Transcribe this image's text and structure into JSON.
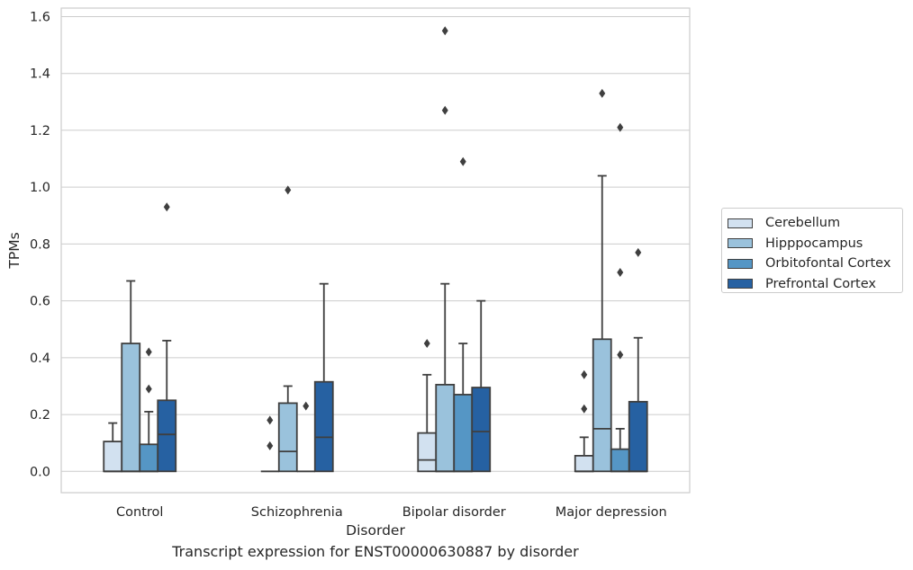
{
  "caption": "Transcript expression for ENST00000630887 by disorder",
  "chart_data": {
    "type": "boxplot",
    "xlabel": "Disorder",
    "ylabel": "TPMs",
    "ylim": [
      -0.075,
      1.63
    ],
    "yticks": [
      0.0,
      0.2,
      0.4,
      0.6,
      0.8,
      1.0,
      1.2,
      1.4,
      1.6
    ],
    "ytick_labels": [
      "0.0",
      "0.2",
      "0.4",
      "0.6",
      "0.8",
      "1.0",
      "1.2",
      "1.4",
      "1.6"
    ],
    "grid": true,
    "legend_position": "right",
    "categories": [
      "Control",
      "Schizophrenia",
      "Bipolar disorder",
      "Major depression"
    ],
    "series": [
      {
        "name": "Cerebellum",
        "color": "#d2e1f0",
        "boxes": [
          {
            "q1": 0.0,
            "median": 0.0,
            "q3": 0.105,
            "whisker_low": 0.0,
            "whisker_high": 0.17,
            "outliers": []
          },
          {
            "q1": 0.0,
            "median": 0.0,
            "q3": 0.0,
            "whisker_low": 0.0,
            "whisker_high": 0.0,
            "outliers": [
              0.09,
              0.18
            ]
          },
          {
            "q1": 0.0,
            "median": 0.04,
            "q3": 0.135,
            "whisker_low": 0.0,
            "whisker_high": 0.34,
            "outliers": [
              0.45
            ]
          },
          {
            "q1": 0.0,
            "median": 0.0,
            "q3": 0.055,
            "whisker_low": 0.0,
            "whisker_high": 0.12,
            "outliers": [
              0.22,
              0.34
            ]
          }
        ]
      },
      {
        "name": "Hipppocampus",
        "color": "#9ac2dc",
        "boxes": [
          {
            "q1": 0.0,
            "median": 0.0,
            "q3": 0.45,
            "whisker_low": 0.0,
            "whisker_high": 0.67,
            "outliers": []
          },
          {
            "q1": 0.0,
            "median": 0.07,
            "q3": 0.24,
            "whisker_low": 0.0,
            "whisker_high": 0.3,
            "outliers": [
              0.99
            ]
          },
          {
            "q1": 0.0,
            "median": 0.0,
            "q3": 0.305,
            "whisker_low": 0.0,
            "whisker_high": 0.66,
            "outliers": [
              1.27,
              1.55
            ]
          },
          {
            "q1": 0.0,
            "median": 0.15,
            "q3": 0.465,
            "whisker_low": 0.0,
            "whisker_high": 1.04,
            "outliers": [
              1.33
            ]
          }
        ]
      },
      {
        "name": "Orbitofontal Cortex",
        "color": "#5596c5",
        "boxes": [
          {
            "q1": 0.0,
            "median": 0.0,
            "q3": 0.095,
            "whisker_low": 0.0,
            "whisker_high": 0.21,
            "outliers": [
              0.29,
              0.42
            ]
          },
          {
            "q1": 0.0,
            "median": 0.0,
            "q3": 0.0,
            "whisker_low": 0.0,
            "whisker_high": 0.0,
            "outliers": [
              0.23
            ]
          },
          {
            "q1": 0.0,
            "median": 0.0,
            "q3": 0.27,
            "whisker_low": 0.0,
            "whisker_high": 0.45,
            "outliers": [
              1.09
            ]
          },
          {
            "q1": 0.0,
            "median": 0.0,
            "q3": 0.078,
            "whisker_low": 0.0,
            "whisker_high": 0.15,
            "outliers": [
              0.41,
              0.7,
              1.21
            ]
          }
        ]
      },
      {
        "name": "Prefrontal Cortex",
        "color": "#2661a2",
        "boxes": [
          {
            "q1": 0.0,
            "median": 0.13,
            "q3": 0.25,
            "whisker_low": 0.0,
            "whisker_high": 0.46,
            "outliers": [
              0.93
            ]
          },
          {
            "q1": 0.0,
            "median": 0.12,
            "q3": 0.315,
            "whisker_low": 0.0,
            "whisker_high": 0.66,
            "outliers": []
          },
          {
            "q1": 0.0,
            "median": 0.14,
            "q3": 0.295,
            "whisker_low": 0.0,
            "whisker_high": 0.6,
            "outliers": []
          },
          {
            "q1": 0.0,
            "median": 0.0,
            "q3": 0.245,
            "whisker_low": 0.0,
            "whisker_high": 0.47,
            "outliers": [
              0.77
            ]
          }
        ]
      }
    ]
  }
}
